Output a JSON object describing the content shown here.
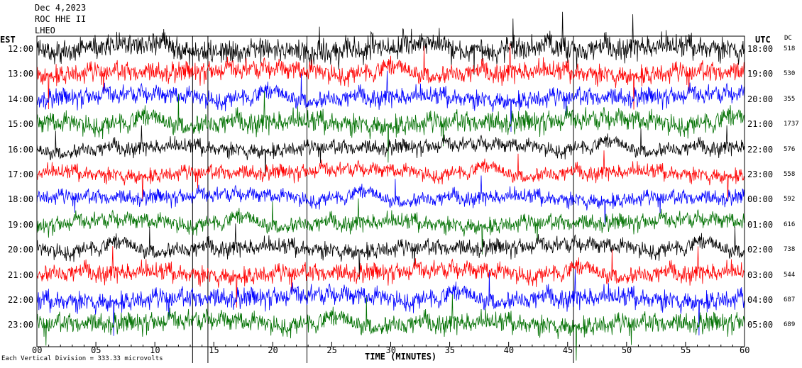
{
  "header": {
    "date": "Dec 4,2023",
    "station": "ROC HHE II",
    "line3": "LHEO"
  },
  "left_zone_label": "EST",
  "right_zone_label": "UTC",
  "dc_label": "DC",
  "footer": {
    "scale_note": "Each Vertical Division =  333.33 microvolts",
    "xlabel": "TIME (MINUTES)"
  },
  "colors": {
    "black": "#000000",
    "red": "#ff0000",
    "blue": "#0000ff",
    "green": "#007000"
  },
  "chart_data": {
    "type": "line",
    "xlabel": "TIME (MINUTES)",
    "x_ticks": [
      "00",
      "05",
      "10",
      "15",
      "20",
      "25",
      "30",
      "35",
      "40",
      "45",
      "50",
      "55",
      "60"
    ],
    "xlim": [
      0,
      60
    ],
    "rows": [
      {
        "est": "12:00",
        "utc": "18:00",
        "dc": "518",
        "color": "black"
      },
      {
        "est": "13:00",
        "utc": "19:00",
        "dc": "530",
        "color": "red"
      },
      {
        "est": "14:00",
        "utc": "20:00",
        "dc": "355",
        "color": "blue"
      },
      {
        "est": "15:00",
        "utc": "21:00",
        "dc": "1737",
        "color": "green"
      },
      {
        "est": "16:00",
        "utc": "22:00",
        "dc": "576",
        "color": "black"
      },
      {
        "est": "17:00",
        "utc": "23:00",
        "dc": "558",
        "color": "red"
      },
      {
        "est": "18:00",
        "utc": "00:00",
        "dc": "592",
        "color": "blue"
      },
      {
        "est": "19:00",
        "utc": "01:00",
        "dc": "616",
        "color": "green"
      },
      {
        "est": "20:00",
        "utc": "02:00",
        "dc": "738",
        "color": "black"
      },
      {
        "est": "21:00",
        "utc": "03:00",
        "dc": "544",
        "color": "red"
      },
      {
        "est": "22:00",
        "utc": "04:00",
        "dc": "687",
        "color": "blue"
      },
      {
        "est": "23:00",
        "utc": "05:00",
        "dc": "689",
        "color": "green"
      }
    ]
  }
}
